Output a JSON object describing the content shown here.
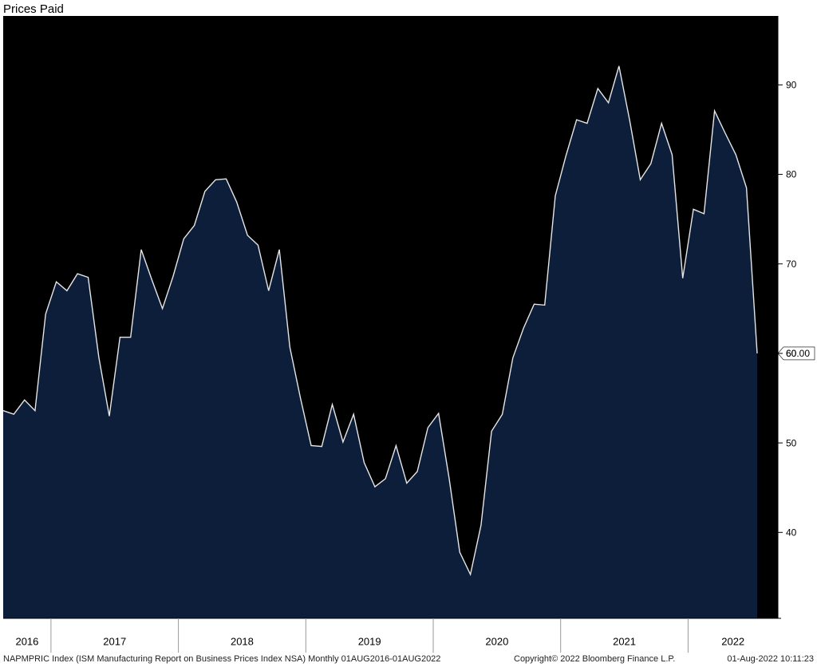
{
  "chart_data": {
    "type": "area",
    "title": "Prices Paid",
    "x": [
      2016.625,
      2016.708,
      2016.792,
      2016.875,
      2016.958,
      2017.042,
      2017.125,
      2017.208,
      2017.292,
      2017.375,
      2017.458,
      2017.542,
      2017.625,
      2017.708,
      2017.792,
      2017.875,
      2017.958,
      2018.042,
      2018.125,
      2018.208,
      2018.292,
      2018.375,
      2018.458,
      2018.542,
      2018.625,
      2018.708,
      2018.792,
      2018.875,
      2018.958,
      2019.042,
      2019.125,
      2019.208,
      2019.292,
      2019.375,
      2019.458,
      2019.542,
      2019.625,
      2019.708,
      2019.792,
      2019.875,
      2019.958,
      2020.042,
      2020.125,
      2020.208,
      2020.292,
      2020.375,
      2020.458,
      2020.542,
      2020.625,
      2020.708,
      2020.792,
      2020.875,
      2020.958,
      2021.042,
      2021.125,
      2021.208,
      2021.292,
      2021.375,
      2021.458,
      2021.542,
      2021.625,
      2021.708,
      2021.792,
      2021.875,
      2021.958,
      2022.042,
      2022.125,
      2022.208,
      2022.292,
      2022.375,
      2022.458,
      2022.542
    ],
    "series": [
      {
        "name": "NAPMPRIC Index",
        "color": "#0c1e3a",
        "line_color": "#e6e6e6",
        "values": [
          53.6,
          53.2,
          54.8,
          53.6,
          64.4,
          68.0,
          67.0,
          68.9,
          68.5,
          59.6,
          53.0,
          61.8,
          61.8,
          71.6,
          68.2,
          65.0,
          68.6,
          72.8,
          74.3,
          78.1,
          79.4,
          79.5,
          76.9,
          73.2,
          72.1,
          67.0,
          71.6,
          60.7,
          55.0,
          49.7,
          49.6,
          54.3,
          50.1,
          53.2,
          47.8,
          45.1,
          46.0,
          49.7,
          45.5,
          46.8,
          51.7,
          53.3,
          46.0,
          37.8,
          35.3,
          40.8,
          51.3,
          53.2,
          59.5,
          62.8,
          65.5,
          65.4,
          77.6,
          82.1,
          86.1,
          85.7,
          89.6,
          88.0,
          92.1,
          86.0,
          79.4,
          81.2,
          85.7,
          82.2,
          68.4,
          76.1,
          75.6,
          87.1,
          84.6,
          82.2,
          78.5,
          60.0
        ],
        "value_labels": [
          null,
          null,
          null,
          null,
          null,
          null,
          null,
          null,
          null,
          null,
          null,
          null,
          null,
          null,
          null,
          null,
          null,
          null,
          null,
          null,
          null,
          null,
          null,
          null,
          null,
          null,
          null,
          null,
          null,
          null,
          null,
          null,
          null,
          null,
          null,
          null,
          null,
          null,
          null,
          null,
          null,
          null,
          null,
          null,
          null,
          null,
          null,
          null,
          null,
          null,
          null,
          null,
          null,
          null,
          null,
          null,
          null,
          null,
          null,
          null,
          null,
          null,
          null,
          null,
          null,
          null,
          null,
          null,
          null,
          null,
          null,
          "60.00"
        ]
      }
    ],
    "xlim": [
      2016.625,
      2022.705
    ],
    "xticks": [
      2016,
      2017,
      2018,
      2019,
      2020,
      2021,
      2022
    ],
    "ylim": [
      30.4,
      97.7
    ],
    "yticks": [
      40,
      50,
      60,
      70,
      80,
      90
    ],
    "footer": [
      "NAPMPRIC Index (ISM Manufacturing Report on Business Prices Index NSA)  Monthly 01AUG2016-01AUG2022",
      "Copyright© 2022 Bloomberg Finance L.P.",
      "01-Aug-2022 10:11:23"
    ]
  }
}
